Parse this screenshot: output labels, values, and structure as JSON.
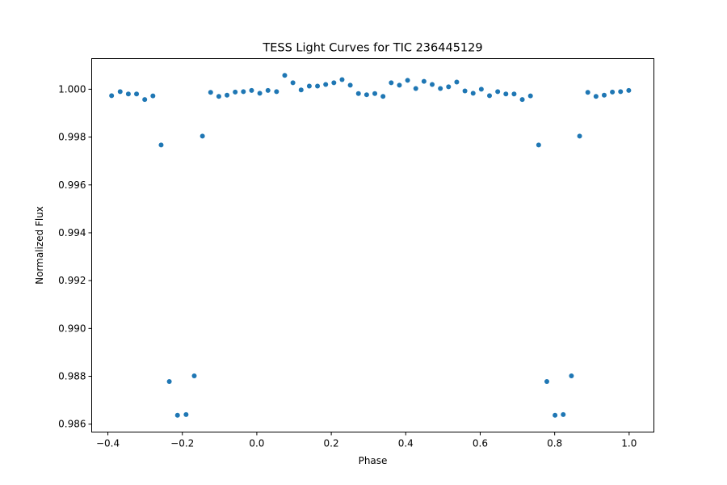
{
  "chart_data": {
    "type": "scatter",
    "title": "TESS Light Curves for TIC 236445129",
    "xlabel": "Phase",
    "ylabel": "Normalized Flux",
    "xlim": [
      -0.4435,
      1.0665
    ],
    "ylim": [
      0.98567,
      1.00128
    ],
    "xticks": [
      -0.4,
      -0.2,
      0.0,
      0.2,
      0.4,
      0.6,
      0.8,
      1.0
    ],
    "xtick_labels": [
      "−0.4",
      "−0.2",
      "0.0",
      "0.2",
      "0.4",
      "0.6",
      "0.8",
      "1.0"
    ],
    "yticks": [
      0.986,
      0.988,
      0.99,
      0.992,
      0.994,
      0.996,
      0.998,
      1.0
    ],
    "ytick_labels": [
      "0.986",
      "0.988",
      "0.990",
      "0.992",
      "0.994",
      "0.996",
      "0.998",
      "1.000"
    ],
    "grid": false,
    "color": "#1f77b4",
    "x": [
      -0.39,
      -0.367,
      -0.345,
      -0.323,
      -0.301,
      -0.279,
      -0.257,
      -0.235,
      -0.213,
      -0.19,
      -0.168,
      -0.146,
      -0.124,
      -0.102,
      -0.08,
      -0.058,
      -0.036,
      -0.014,
      0.008,
      0.03,
      0.053,
      0.075,
      0.097,
      0.119,
      0.141,
      0.163,
      0.185,
      0.207,
      0.229,
      0.251,
      0.273,
      0.295,
      0.317,
      0.339,
      0.361,
      0.383,
      0.405,
      0.427,
      0.449,
      0.471,
      0.493,
      0.515,
      0.537,
      0.559,
      0.581,
      0.603,
      0.625,
      0.647,
      0.669,
      0.691,
      0.713,
      0.735,
      0.757,
      0.779,
      0.801,
      0.823,
      0.845,
      0.867,
      0.889,
      0.911,
      0.933,
      0.955,
      0.977,
      0.999
    ],
    "y": [
      0.99973,
      0.9999,
      0.9998,
      0.9998,
      0.99957,
      0.99972,
      0.99767,
      0.98778,
      0.98637,
      0.9864,
      0.98802,
      0.99804,
      0.99987,
      0.9997,
      0.99975,
      0.99988,
      0.9999,
      0.99995,
      0.99983,
      0.99995,
      0.9999,
      1.00058,
      1.00027,
      0.99997,
      1.00013,
      1.00013,
      1.0002,
      1.00027,
      1.0004,
      1.00017,
      0.99982,
      0.99977,
      0.99982,
      0.9997,
      1.00027,
      1.00017,
      1.00037,
      1.00003,
      1.00033,
      1.0002,
      1.00003,
      1.0001,
      1.0003,
      0.99993,
      0.99983,
      1.0,
      0.99973,
      0.9999,
      0.9998,
      0.9998,
      0.99957,
      0.99972,
      0.99767,
      0.98778,
      0.98637,
      0.9864,
      0.98802,
      0.99804,
      0.99987,
      0.9997,
      0.99975,
      0.99988,
      0.9999,
      0.99995
    ]
  }
}
